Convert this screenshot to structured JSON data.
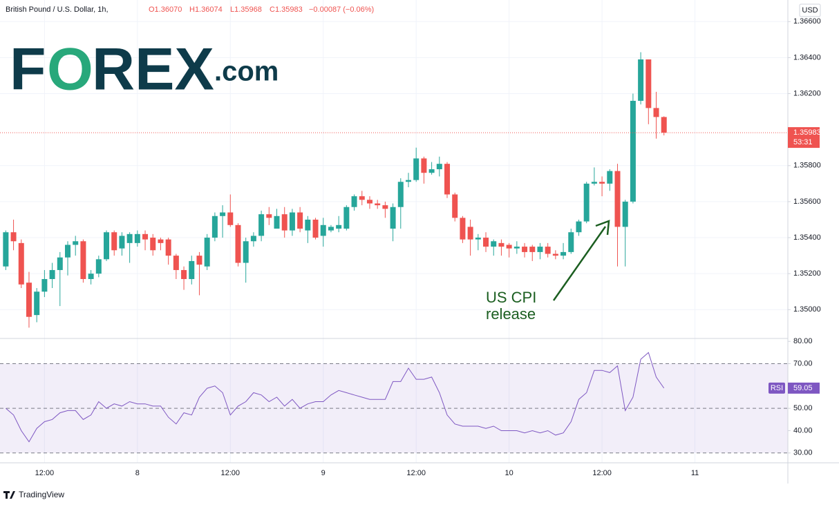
{
  "header": {
    "symbol": "British Pound / U.S. Dollar, 1h,",
    "ohlc": [
      "O1.36070",
      "H1.36074",
      "L1.35968",
      "C1.35983",
      "−0.00087 (−0.06%)"
    ],
    "currency": "USD",
    "countdown": "53:31"
  },
  "logo": [
    "F",
    "O",
    "REX",
    ".com"
  ],
  "annotation": [
    "US CPI",
    "release"
  ],
  "footer": "TradingView",
  "chart_data": [
    {
      "type": "candlestick",
      "up_color": "#26a69a",
      "down_color": "#ef5350",
      "x": [
        0,
        1,
        2,
        3,
        4,
        5,
        6,
        7,
        8,
        9,
        10,
        11,
        12,
        13,
        14,
        15,
        16,
        17,
        18,
        19,
        20,
        21,
        22,
        23,
        24,
        25,
        26,
        27,
        28,
        29,
        30,
        31,
        32,
        33,
        34,
        35,
        36,
        37,
        38,
        39,
        40,
        41,
        42,
        43,
        44,
        45,
        46,
        47,
        48,
        49,
        50,
        51,
        52,
        53,
        54,
        55,
        56,
        57,
        58,
        59,
        60,
        61,
        62,
        63,
        64,
        65,
        66,
        67,
        68,
        69,
        70,
        71,
        72,
        73,
        74,
        75,
        76,
        77,
        78,
        79,
        80,
        81,
        82,
        83,
        84,
        85
      ],
      "open": [
        1.3524,
        1.3543,
        1.3537,
        1.3515,
        1.3497,
        1.351,
        1.3517,
        1.3522,
        1.3529,
        1.3536,
        1.3538,
        1.3517,
        1.352,
        1.3528,
        1.3543,
        1.3534,
        1.3537,
        1.3537,
        1.3542,
        1.354,
        1.3539,
        1.3539,
        1.353,
        1.3522,
        1.3517,
        1.353,
        1.3524,
        1.354,
        1.3552,
        1.3554,
        1.3547,
        1.3526,
        1.3538,
        1.3541,
        1.3553,
        1.3545,
        1.3553,
        1.3544,
        1.3554,
        1.3544,
        1.355,
        1.3541,
        1.3544,
        1.3545,
        1.3545,
        1.3557,
        1.3563,
        1.3561,
        1.3559,
        1.3558,
        1.3545,
        1.3557,
        1.3571,
        1.3572,
        1.3584,
        1.3576,
        1.3578,
        1.3581,
        1.3564,
        1.3551,
        1.3546,
        1.3539,
        1.354,
        1.3535,
        1.3537,
        1.3536,
        1.3534,
        1.3535,
        1.3535,
        1.3532,
        1.3535,
        1.3531,
        1.353,
        1.3532,
        1.3543,
        1.3549,
        1.357,
        1.3571,
        1.357,
        1.3577,
        1.3546,
        1.356,
        1.3616,
        1.3639,
        1.3612,
        1.3607
      ],
      "high": [
        1.3544,
        1.355,
        1.3539,
        1.3521,
        1.3512,
        1.3522,
        1.3526,
        1.3532,
        1.3538,
        1.3541,
        1.3539,
        1.3522,
        1.353,
        1.3544,
        1.3544,
        1.3543,
        1.3543,
        1.3544,
        1.3544,
        1.3542,
        1.354,
        1.354,
        1.3531,
        1.3524,
        1.353,
        1.3532,
        1.3542,
        1.3554,
        1.3558,
        1.3564,
        1.3548,
        1.354,
        1.3543,
        1.3555,
        1.3557,
        1.3556,
        1.3557,
        1.3556,
        1.3557,
        1.3552,
        1.3551,
        1.3551,
        1.3547,
        1.3552,
        1.3558,
        1.3564,
        1.3566,
        1.3563,
        1.3561,
        1.356,
        1.3559,
        1.3573,
        1.3576,
        1.359,
        1.3585,
        1.3582,
        1.3585,
        1.3582,
        1.3565,
        1.3552,
        1.355,
        1.3542,
        1.3543,
        1.3539,
        1.3539,
        1.3537,
        1.3538,
        1.3537,
        1.3536,
        1.3537,
        1.3537,
        1.3533,
        1.3537,
        1.3545,
        1.355,
        1.3571,
        1.3579,
        1.3574,
        1.3578,
        1.3581,
        1.3561,
        1.362,
        1.3643,
        1.3639,
        1.3621,
        1.36074
      ],
      "low": [
        1.3522,
        1.3533,
        1.3512,
        1.349,
        1.3493,
        1.3507,
        1.3512,
        1.3502,
        1.3519,
        1.353,
        1.3515,
        1.3514,
        1.3518,
        1.3527,
        1.353,
        1.353,
        1.3526,
        1.3535,
        1.3533,
        1.353,
        1.3533,
        1.3525,
        1.3517,
        1.3511,
        1.3514,
        1.3508,
        1.3522,
        1.3538,
        1.354,
        1.3546,
        1.3524,
        1.3515,
        1.3535,
        1.3538,
        1.3547,
        1.3545,
        1.354,
        1.3541,
        1.3543,
        1.3537,
        1.3539,
        1.3535,
        1.3543,
        1.3543,
        1.3544,
        1.3555,
        1.3558,
        1.3556,
        1.3556,
        1.3551,
        1.3538,
        1.3545,
        1.3568,
        1.3571,
        1.357,
        1.3575,
        1.3574,
        1.3562,
        1.3549,
        1.3537,
        1.353,
        1.3533,
        1.3532,
        1.353,
        1.353,
        1.3529,
        1.3531,
        1.3529,
        1.3527,
        1.3528,
        1.3529,
        1.3528,
        1.3528,
        1.3531,
        1.3541,
        1.3548,
        1.3569,
        1.3563,
        1.3566,
        1.3524,
        1.3524,
        1.3559,
        1.3614,
        1.3603,
        1.3595,
        1.35968
      ],
      "close": [
        1.3543,
        1.3538,
        1.3514,
        1.3496,
        1.351,
        1.3517,
        1.3522,
        1.3529,
        1.3536,
        1.3538,
        1.3517,
        1.352,
        1.3528,
        1.3543,
        1.3533,
        1.3541,
        1.3542,
        1.3542,
        1.3539,
        1.3533,
        1.3537,
        1.353,
        1.3522,
        1.3517,
        1.3527,
        1.3525,
        1.354,
        1.3552,
        1.3554,
        1.3547,
        1.3526,
        1.3538,
        1.3541,
        1.3553,
        1.3551,
        1.3552,
        1.3544,
        1.3554,
        1.3545,
        1.355,
        1.354,
        1.3547,
        1.3546,
        1.3547,
        1.3557,
        1.3563,
        1.3561,
        1.3559,
        1.3558,
        1.3556,
        1.3557,
        1.3571,
        1.3572,
        1.3584,
        1.3576,
        1.3578,
        1.3581,
        1.3564,
        1.3551,
        1.3539,
        1.3539,
        1.354,
        1.3535,
        1.3538,
        1.3535,
        1.3534,
        1.3535,
        1.3532,
        1.3532,
        1.3535,
        1.3531,
        1.353,
        1.3532,
        1.3543,
        1.3549,
        1.357,
        1.3571,
        1.357,
        1.3577,
        1.3546,
        1.356,
        1.3616,
        1.3639,
        1.3612,
        1.3607,
        1.35983
      ],
      "xlim": [
        -0.3,
        101
      ],
      "xticks": [
        {
          "value": 5,
          "label": "12:00"
        },
        {
          "value": 17,
          "label": "8"
        },
        {
          "value": 29,
          "label": "12:00"
        },
        {
          "value": 41,
          "label": "9"
        },
        {
          "value": 53,
          "label": "12:00"
        },
        {
          "value": 65,
          "label": "10"
        },
        {
          "value": 77,
          "label": "12:00"
        },
        {
          "value": 89,
          "label": "11"
        }
      ],
      "ylim": [
        1.3484,
        1.3672
      ],
      "yticks": [
        {
          "value": 1.366,
          "label": "1.36600"
        },
        {
          "value": 1.364,
          "label": "1.36400"
        },
        {
          "value": 1.362,
          "label": "1.36200"
        },
        {
          "value": 1.358,
          "label": "1.35800"
        },
        {
          "value": 1.356,
          "label": "1.35600"
        },
        {
          "value": 1.354,
          "label": "1.35400"
        },
        {
          "value": 1.352,
          "label": "1.35200"
        },
        {
          "value": 1.35,
          "label": "1.35000"
        }
      ],
      "grid": true
    },
    {
      "type": "line",
      "series_name": "RSI",
      "color": "#7e57c2",
      "values": [
        50,
        47,
        40,
        35,
        41,
        44,
        45,
        48,
        49,
        49,
        45,
        47,
        53,
        50,
        52,
        51,
        53,
        52,
        52,
        51,
        51,
        46,
        43,
        48,
        47,
        55,
        59,
        60,
        57,
        47,
        51,
        53,
        57,
        56,
        53,
        55,
        51,
        54,
        50,
        52,
        53,
        53,
        56,
        58,
        57,
        56,
        55,
        54,
        54,
        54,
        62,
        62,
        68,
        63,
        63,
        64,
        57,
        47,
        43,
        42,
        42,
        42,
        41,
        42,
        40,
        40,
        40,
        39,
        40,
        39,
        40,
        38,
        39,
        44,
        54,
        57,
        67,
        67,
        66,
        69,
        49,
        55,
        72,
        75,
        64,
        59.05
      ],
      "ylim": [
        25.6,
        81.3
      ],
      "yticks": [
        {
          "value": 80,
          "label": "80.00"
        },
        {
          "value": 70,
          "label": "70.00"
        },
        {
          "value": 50,
          "label": "50.00"
        },
        {
          "value": 40,
          "label": "40.00"
        },
        {
          "value": 30,
          "label": "30.00"
        }
      ],
      "levels": [
        30,
        50,
        70
      ]
    }
  ]
}
